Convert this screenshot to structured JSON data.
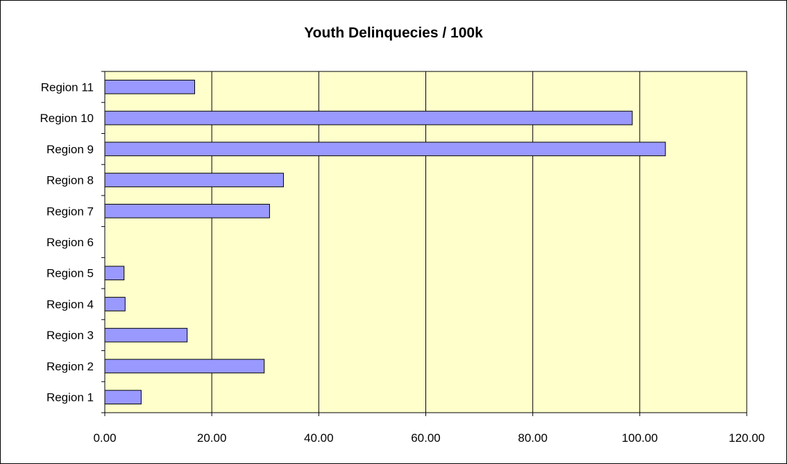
{
  "chart_data": {
    "type": "bar",
    "orientation": "horizontal",
    "title": "Youth Delinquecies / 100k",
    "xlabel": "",
    "ylabel": "",
    "categories": [
      "Region 1",
      "Region 2",
      "Region 3",
      "Region 4",
      "Region 5",
      "Region 6",
      "Region 7",
      "Region 8",
      "Region 9",
      "Region 10",
      "Region 11"
    ],
    "values": [
      6.8,
      29.8,
      15.4,
      3.8,
      3.6,
      0,
      30.8,
      33.4,
      104.8,
      98.6,
      16.8
    ],
    "xlim": [
      0,
      120
    ],
    "x_ticks": [
      "0.00",
      "20.00",
      "40.00",
      "60.00",
      "80.00",
      "100.00",
      "120.00"
    ],
    "x_tick_values": [
      0,
      20,
      40,
      60,
      80,
      100,
      120
    ],
    "grid": "vertical",
    "legend": "none",
    "colors": {
      "bar_fill": "#9999ff",
      "bar_stroke": "#000000",
      "plot_background": "#ffffcc",
      "gridline": "#000000"
    }
  }
}
